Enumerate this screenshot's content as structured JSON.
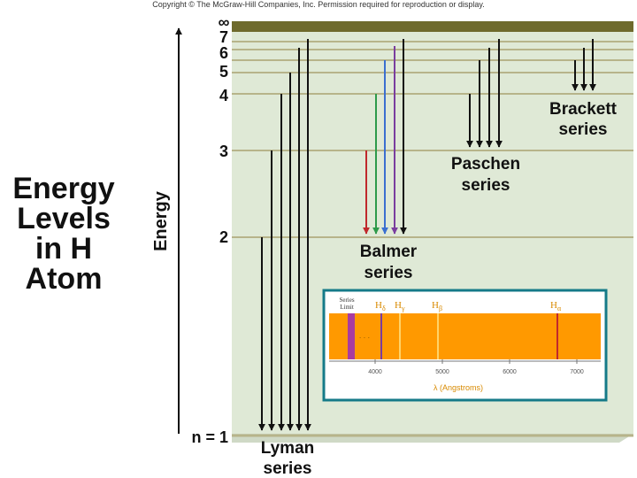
{
  "copyright": "Copyright © The McGraw-Hill Companies, Inc. Permission required for reproduction or display.",
  "title_lines": [
    "Energy",
    "Levels",
    "in H",
    "Atom"
  ],
  "axis_label": "Energy",
  "levels": [
    "n = 1",
    "2",
    "3",
    "4",
    "5",
    "6",
    "7",
    "∞"
  ],
  "series": {
    "lyman": [
      "Lyman",
      "series"
    ],
    "balmer": [
      "Balmer",
      "series"
    ],
    "paschen": [
      "Paschen",
      "series"
    ],
    "brackett": [
      "Brackett",
      "series"
    ]
  },
  "spectrum": {
    "series_limit": [
      "Series",
      "Limit"
    ],
    "lines": [
      "H",
      "H",
      "H",
      "H"
    ],
    "line_subs": [
      "δ",
      "γ",
      "β",
      "α"
    ],
    "ticks": [
      "4000",
      "5000",
      "6000",
      "7000"
    ],
    "dots": "· · ·",
    "xlabel": "λ (Angstroms)"
  },
  "colors": {
    "panel": "#dfe9d6",
    "level_line": "#b7b48a",
    "top_band": "#6e6a2c",
    "h_alpha": "#c0282c",
    "h_beta": "#2e9a4a",
    "h_gamma": "#3b6fd0",
    "h_delta": "#7a3d9e",
    "spectrum_bg": "#ff9900",
    "frame": "#157a88"
  }
}
